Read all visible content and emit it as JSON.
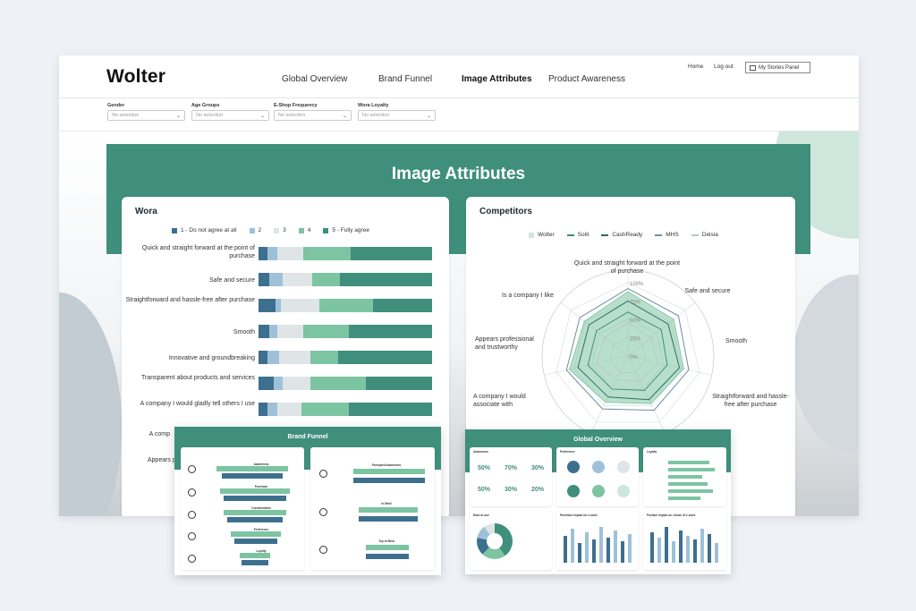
{
  "app": {
    "logo": "Wolter",
    "nav": [
      "Global Overview",
      "Brand Funnel",
      "Image Attributes",
      "Product Awareness"
    ],
    "active_nav": "Image Attributes",
    "links": {
      "home": "Home",
      "logout": "Log out",
      "stories": "My Stories Panel"
    }
  },
  "filters": [
    {
      "label": "Gender",
      "value": "No selection"
    },
    {
      "label": "Age Groups",
      "value": "No selection"
    },
    {
      "label": "E-Shop Frequency",
      "value": "No selection"
    },
    {
      "label": "Wora Loyalty",
      "value": "No selection"
    }
  ],
  "page_title": "Image Attributes",
  "colors": {
    "green": "#3f8f7c",
    "s1": "#3d6f8e",
    "s2": "#9ec1d9",
    "s3": "#dfe5e7",
    "s4": "#7dc4a3",
    "s5": "#3f8f7c"
  },
  "wora": {
    "title": "Wora",
    "legend": [
      "1 - Do not agree at all",
      "2",
      "3",
      "4",
      "5 - Fully agree"
    ],
    "visible_labels": [
      "Quick and straight forward at the point of purchase",
      "Safe and secure",
      "Straightforward and hassle-free after purchase",
      "Smooth",
      "Innovative and groundbreaking",
      "Transparent about products and services",
      "A company I would gladly tell others I use"
    ],
    "partial_labels": [
      "A comp",
      "Appears pro"
    ]
  },
  "competitors": {
    "title": "Competitors",
    "legend": [
      "Wolter",
      "Solit",
      "CashReady",
      "MHS",
      "Delsia"
    ],
    "axes": [
      "Quick and straight forward at the point of purchase",
      "Safe and secure",
      "Smooth",
      "Straightforward and hassle-free after purchase",
      "A company I would associate with",
      "Appears professional and trustworthy",
      "Is a company I like"
    ],
    "ticks": [
      "100%",
      "75%",
      "50%",
      "25%",
      "0%"
    ]
  },
  "chart_data": [
    {
      "type": "bar",
      "title": "Wora",
      "stacked": true,
      "percent": true,
      "categories": [
        "Quick and straight forward at the point of purchase",
        "Safe and secure",
        "Straightforward and hassle-free after purchase",
        "Smooth",
        "Innovative and groundbreaking",
        "Transparent about products and services",
        "A company I would gladly tell others I use"
      ],
      "series": [
        {
          "name": "1 - Do not agree at all",
          "values": [
            5,
            6,
            10,
            6,
            5,
            9,
            5
          ]
        },
        {
          "name": "2",
          "values": [
            6,
            8,
            3,
            5,
            7,
            5,
            6
          ]
        },
        {
          "name": "3",
          "values": [
            15,
            17,
            22,
            15,
            18,
            16,
            14
          ]
        },
        {
          "name": "4",
          "values": [
            27,
            16,
            31,
            26,
            16,
            32,
            27
          ]
        },
        {
          "name": "5 - Fully agree",
          "values": [
            47,
            53,
            34,
            48,
            54,
            38,
            48
          ]
        }
      ]
    },
    {
      "type": "radar",
      "title": "Competitors",
      "axes": [
        "Quick and straight forward at the point of purchase",
        "Safe and secure",
        "Smooth",
        "Straightforward and hassle-free after purchase",
        "A company I would associate with",
        "Appears professional and trustworthy",
        "Is a company I like"
      ],
      "ylim": [
        0,
        100
      ],
      "series": [
        {
          "name": "Wolter",
          "values": [
            88,
            80,
            78,
            72,
            70,
            82,
            76
          ]
        },
        {
          "name": "Solit",
          "values": [
            60,
            58,
            55,
            52,
            50,
            56,
            55
          ]
        },
        {
          "name": "CashReady",
          "values": [
            75,
            70,
            72,
            66,
            62,
            70,
            68
          ]
        },
        {
          "name": "MHS",
          "values": [
            92,
            88,
            85,
            82,
            80,
            86,
            84
          ]
        },
        {
          "name": "Delsia",
          "values": [
            45,
            40,
            42,
            38,
            36,
            44,
            41
          ]
        }
      ]
    }
  ],
  "thumbnails": {
    "brand_funnel": {
      "title": "Brand Funnel",
      "left_stages": [
        "Awareness",
        "Purchase",
        "Consideration",
        "Preference",
        "Loyalty"
      ],
      "right_stages": [
        "Prompted Awareness",
        "In Mind",
        "Top of Mind"
      ]
    },
    "global_overview": {
      "title": "Global Overview",
      "panels": [
        "Awareness",
        "Preference",
        "Loyalty",
        "Ease to use",
        "Purchase impact on e-store",
        "Positive impact on choice of e-store"
      ],
      "awareness_values": [
        "50%",
        "70%",
        "30%",
        "50%",
        "30%",
        "20%"
      ]
    }
  }
}
